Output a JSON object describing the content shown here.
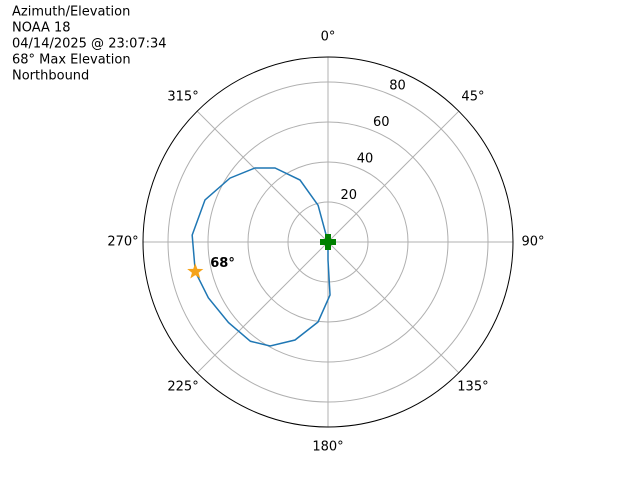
{
  "chart_data": {
    "type": "polar",
    "title_lines": [
      "Azimuth/Elevation",
      "NOAA 18",
      "04/14/2025 @ 23:07:34",
      "68° Max Elevation",
      "Northbound"
    ],
    "x": [
      0,
      344.9,
      335.7,
      324.4,
      315.4,
      303.1,
      288.9,
      272.9,
      257.4,
      245,
      231,
      218,
      209.1,
      198.6,
      187.1,
      177.8,
      180,
      0
    ],
    "series": [
      {
        "name": "pass",
        "color": "#1f77b4",
        "values": [
          0,
          19,
          34,
          45.5,
          52,
          58.5,
          65,
          68,
          68,
          66,
          64,
          63,
          59.5,
          51.7,
          40.3,
          26.5,
          9,
          0
        ]
      }
    ],
    "start": {
      "azimuth": 0,
      "elevation": 0,
      "color": "#008000"
    },
    "max_point": {
      "azimuth": 257.4,
      "elevation": 68,
      "label": "68°",
      "color": "#f5a31a"
    },
    "ylim": [
      0,
      92.5
    ],
    "yticks": [
      20,
      40,
      60,
      80
    ],
    "xticks": [
      {
        "value": 0,
        "label": "0°"
      },
      {
        "value": 45,
        "label": "45°"
      },
      {
        "value": 90,
        "label": "90°"
      },
      {
        "value": 135,
        "label": "135°"
      },
      {
        "value": 180,
        "label": "180°"
      },
      {
        "value": 225,
        "label": "225°"
      },
      {
        "value": 270,
        "label": "270°"
      },
      {
        "value": 315,
        "label": "315°"
      }
    ],
    "grid": true
  }
}
